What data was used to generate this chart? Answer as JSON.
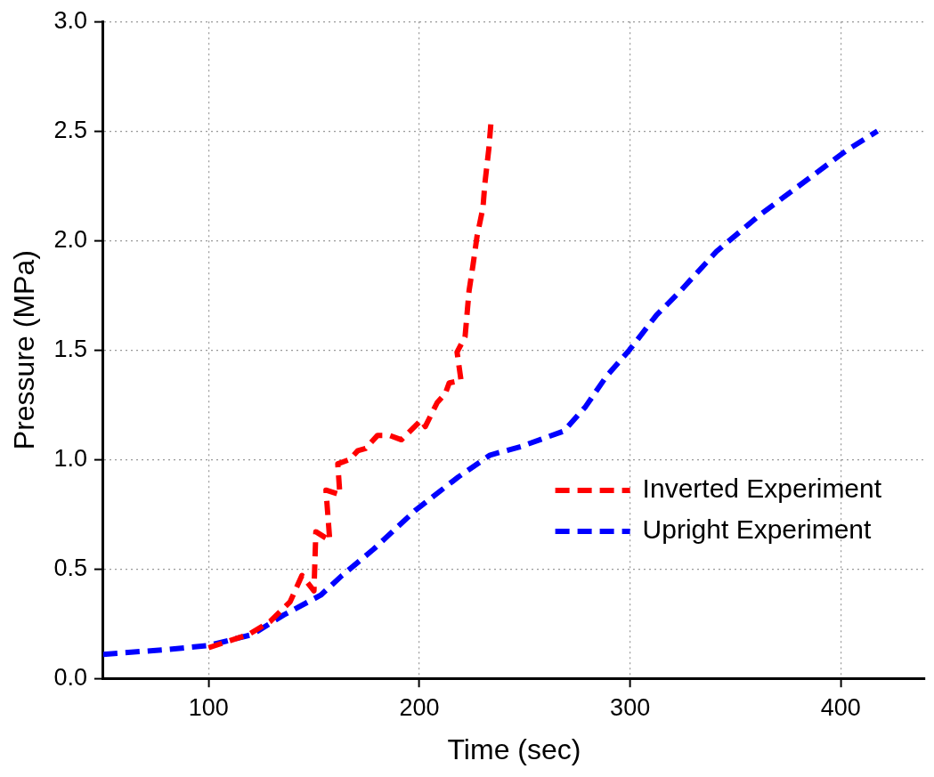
{
  "chart_data": {
    "type": "line",
    "xlabel": "Time (sec)",
    "ylabel": "Pressure (MPa)",
    "xlim": [
      50,
      440
    ],
    "xticks": [
      100,
      200,
      300,
      400
    ],
    "ylim": [
      0,
      3
    ],
    "yticks": [
      {
        "value": 0,
        "label": "0.0"
      },
      0.5,
      {
        "value": 1,
        "label": "1.0"
      },
      1.5,
      {
        "value": 2,
        "label": "2.0"
      },
      2.5,
      {
        "value": 3,
        "label": "3.0"
      }
    ],
    "grid": true,
    "legend": "right",
    "line_style": "dashed",
    "marker": "none",
    "series": [
      {
        "name": "Inverted Experiment",
        "color": "#ff0000",
        "x": [
          100,
          118.9,
          129.2,
          138.7,
          144.3,
          150,
          150.9,
          157.5,
          155.7,
          162.3,
          161.3,
          167,
          170.8,
          174.5,
          180.2,
          185.8,
          191.5,
          200.9,
          202.8,
          208.5,
          212.3,
          214.2,
          219.8,
          217.9,
          221.7,
          223.6,
          225.5,
          227.4,
          230.2,
          231.1,
          233,
          234
        ],
        "values": [
          0.14,
          0.2,
          0.26,
          0.35,
          0.47,
          0.4,
          0.67,
          0.63,
          0.86,
          0.84,
          0.98,
          1.0,
          1.04,
          1.05,
          1.11,
          1.11,
          1.09,
          1.18,
          1.15,
          1.26,
          1.3,
          1.35,
          1.36,
          1.49,
          1.56,
          1.77,
          1.89,
          2.02,
          2.15,
          2.26,
          2.42,
          2.54
        ]
      },
      {
        "name": "Upright Experiment",
        "color": "#0000ff",
        "x": [
          50,
          77.9,
          100,
          120.6,
          135.7,
          153.2,
          163.3,
          178.3,
          198.4,
          218.5,
          233.6,
          248.6,
          268.7,
          278.8,
          288.8,
          299.7,
          312.6,
          323,
          341,
          362,
          383,
          402.5,
          417.4
        ],
        "values": [
          0.11,
          0.13,
          0.15,
          0.2,
          0.29,
          0.38,
          0.47,
          0.59,
          0.77,
          0.92,
          1.02,
          1.06,
          1.13,
          1.24,
          1.38,
          1.5,
          1.66,
          1.76,
          1.95,
          2.12,
          2.27,
          2.41,
          2.5
        ]
      }
    ]
  }
}
